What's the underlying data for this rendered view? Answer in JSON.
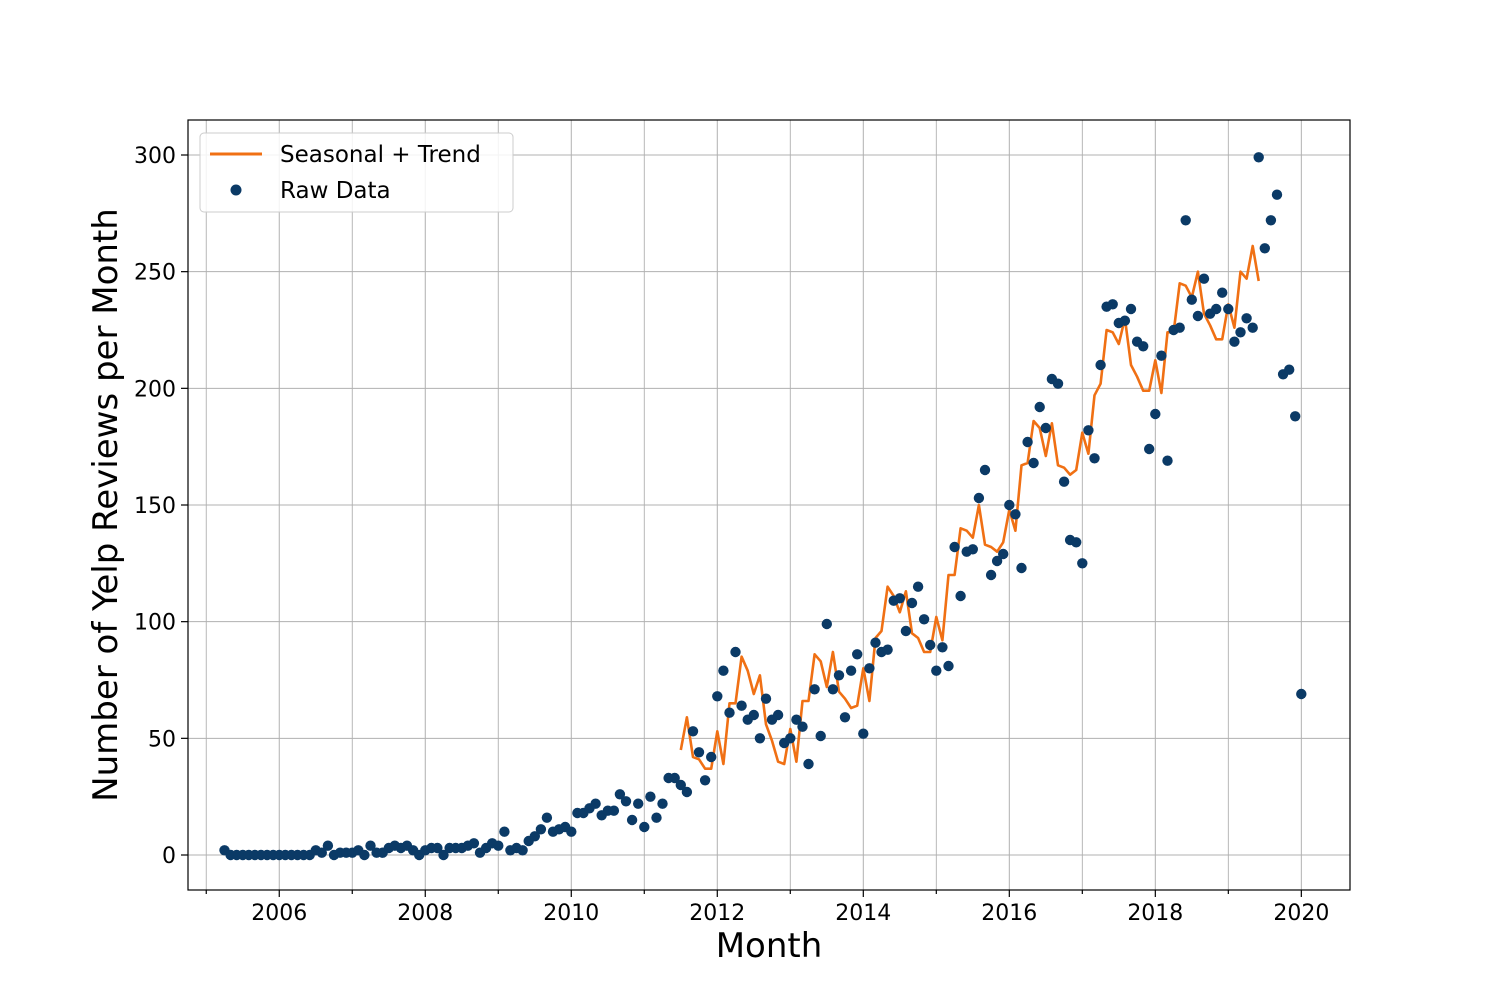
{
  "chart_data": {
    "type": "line+scatter",
    "xlabel": "Month",
    "ylabel": "Number of Yelp Reviews per Month",
    "xlim": [
      "2004-10",
      "2020-09"
    ],
    "ylim": [
      -15,
      315
    ],
    "x_major_ticks": [
      "2006",
      "2008",
      "2010",
      "2012",
      "2014",
      "2016",
      "2018",
      "2020"
    ],
    "x_minor_ticks": [
      "2005",
      "2007",
      "2009",
      "2011",
      "2013",
      "2015",
      "2017",
      "2019"
    ],
    "y_ticks": [
      0,
      50,
      100,
      150,
      200,
      250,
      300
    ],
    "grid": true,
    "legend_position": "top-left",
    "legend": [
      {
        "label": "Seasonal + Trend",
        "marker": "line",
        "color": "#f07014"
      },
      {
        "label": "Raw Data",
        "marker": "dot",
        "color": "#0b3a66"
      }
    ],
    "colors": {
      "line": "#f07014",
      "points": "#0b3a66",
      "grid": "#b0b0b0"
    },
    "series": [
      {
        "name": "Raw Data",
        "kind": "scatter",
        "points": [
          [
            "2005-04",
            2
          ],
          [
            "2005-05",
            0
          ],
          [
            "2005-06",
            0
          ],
          [
            "2005-07",
            0
          ],
          [
            "2005-08",
            0
          ],
          [
            "2005-09",
            0
          ],
          [
            "2005-10",
            0
          ],
          [
            "2005-11",
            0
          ],
          [
            "2005-12",
            0
          ],
          [
            "2006-01",
            0
          ],
          [
            "2006-02",
            0
          ],
          [
            "2006-03",
            0
          ],
          [
            "2006-04",
            0
          ],
          [
            "2006-05",
            0
          ],
          [
            "2006-06",
            0
          ],
          [
            "2006-07",
            2
          ],
          [
            "2006-08",
            1
          ],
          [
            "2006-09",
            4
          ],
          [
            "2006-10",
            0
          ],
          [
            "2006-11",
            1
          ],
          [
            "2006-12",
            1
          ],
          [
            "2007-01",
            1
          ],
          [
            "2007-02",
            2
          ],
          [
            "2007-03",
            0
          ],
          [
            "2007-04",
            4
          ],
          [
            "2007-05",
            1
          ],
          [
            "2007-06",
            1
          ],
          [
            "2007-07",
            3
          ],
          [
            "2007-08",
            4
          ],
          [
            "2007-09",
            3
          ],
          [
            "2007-10",
            4
          ],
          [
            "2007-11",
            2
          ],
          [
            "2007-12",
            0
          ],
          [
            "2008-01",
            2
          ],
          [
            "2008-02",
            3
          ],
          [
            "2008-03",
            3
          ],
          [
            "2008-04",
            0
          ],
          [
            "2008-05",
            3
          ],
          [
            "2008-06",
            3
          ],
          [
            "2008-07",
            3
          ],
          [
            "2008-08",
            4
          ],
          [
            "2008-09",
            5
          ],
          [
            "2008-10",
            1
          ],
          [
            "2008-11",
            3
          ],
          [
            "2008-12",
            5
          ],
          [
            "2009-01",
            4
          ],
          [
            "2009-02",
            10
          ],
          [
            "2009-03",
            2
          ],
          [
            "2009-04",
            3
          ],
          [
            "2009-05",
            2
          ],
          [
            "2009-06",
            6
          ],
          [
            "2009-07",
            8
          ],
          [
            "2009-08",
            11
          ],
          [
            "2009-09",
            16
          ],
          [
            "2009-10",
            10
          ],
          [
            "2009-11",
            11
          ],
          [
            "2009-12",
            12
          ],
          [
            "2010-01",
            10
          ],
          [
            "2010-02",
            18
          ],
          [
            "2010-03",
            18
          ],
          [
            "2010-04",
            20
          ],
          [
            "2010-05",
            22
          ],
          [
            "2010-06",
            17
          ],
          [
            "2010-07",
            19
          ],
          [
            "2010-08",
            19
          ],
          [
            "2010-09",
            26
          ],
          [
            "2010-10",
            23
          ],
          [
            "2010-11",
            15
          ],
          [
            "2010-12",
            22
          ],
          [
            "2011-01",
            12
          ],
          [
            "2011-02",
            25
          ],
          [
            "2011-03",
            16
          ],
          [
            "2011-04",
            22
          ],
          [
            "2011-05",
            33
          ],
          [
            "2011-06",
            33
          ],
          [
            "2011-07",
            30
          ],
          [
            "2011-08",
            27
          ],
          [
            "2011-09",
            53
          ],
          [
            "2011-10",
            44
          ],
          [
            "2011-11",
            32
          ],
          [
            "2011-12",
            42
          ],
          [
            "2012-01",
            68
          ],
          [
            "2012-02",
            79
          ],
          [
            "2012-03",
            61
          ],
          [
            "2012-04",
            87
          ],
          [
            "2012-05",
            64
          ],
          [
            "2012-06",
            58
          ],
          [
            "2012-07",
            60
          ],
          [
            "2012-08",
            50
          ],
          [
            "2012-09",
            67
          ],
          [
            "2012-10",
            58
          ],
          [
            "2012-11",
            60
          ],
          [
            "2012-12",
            48
          ],
          [
            "2013-01",
            50
          ],
          [
            "2013-02",
            58
          ],
          [
            "2013-03",
            55
          ],
          [
            "2013-04",
            39
          ],
          [
            "2013-05",
            71
          ],
          [
            "2013-06",
            51
          ],
          [
            "2013-07",
            99
          ],
          [
            "2013-08",
            71
          ],
          [
            "2013-09",
            77
          ],
          [
            "2013-10",
            59
          ],
          [
            "2013-11",
            79
          ],
          [
            "2013-12",
            86
          ],
          [
            "2014-01",
            52
          ],
          [
            "2014-02",
            80
          ],
          [
            "2014-03",
            91
          ],
          [
            "2014-04",
            87
          ],
          [
            "2014-05",
            88
          ],
          [
            "2014-06",
            109
          ],
          [
            "2014-07",
            110
          ],
          [
            "2014-08",
            96
          ],
          [
            "2014-09",
            108
          ],
          [
            "2014-10",
            115
          ],
          [
            "2014-11",
            101
          ],
          [
            "2014-12",
            90
          ],
          [
            "2015-01",
            79
          ],
          [
            "2015-02",
            89
          ],
          [
            "2015-03",
            81
          ],
          [
            "2015-04",
            132
          ],
          [
            "2015-05",
            111
          ],
          [
            "2015-06",
            130
          ],
          [
            "2015-07",
            131
          ],
          [
            "2015-08",
            153
          ],
          [
            "2015-09",
            165
          ],
          [
            "2015-10",
            120
          ],
          [
            "2015-11",
            126
          ],
          [
            "2015-12",
            129
          ],
          [
            "2016-01",
            150
          ],
          [
            "2016-02",
            146
          ],
          [
            "2016-03",
            123
          ],
          [
            "2016-04",
            177
          ],
          [
            "2016-05",
            168
          ],
          [
            "2016-06",
            192
          ],
          [
            "2016-07",
            183
          ],
          [
            "2016-08",
            204
          ],
          [
            "2016-09",
            202
          ],
          [
            "2016-10",
            160
          ],
          [
            "2016-11",
            135
          ],
          [
            "2016-12",
            134
          ],
          [
            "2017-01",
            125
          ],
          [
            "2017-02",
            182
          ],
          [
            "2017-03",
            170
          ],
          [
            "2017-04",
            210
          ],
          [
            "2017-05",
            235
          ],
          [
            "2017-06",
            236
          ],
          [
            "2017-07",
            228
          ],
          [
            "2017-08",
            229
          ],
          [
            "2017-09",
            234
          ],
          [
            "2017-10",
            220
          ],
          [
            "2017-11",
            218
          ],
          [
            "2017-12",
            174
          ],
          [
            "2018-01",
            189
          ],
          [
            "2018-02",
            214
          ],
          [
            "2018-03",
            169
          ],
          [
            "2018-04",
            225
          ],
          [
            "2018-05",
            226
          ],
          [
            "2018-06",
            272
          ],
          [
            "2018-07",
            238
          ],
          [
            "2018-08",
            231
          ],
          [
            "2018-09",
            247
          ],
          [
            "2018-10",
            232
          ],
          [
            "2018-11",
            234
          ],
          [
            "2018-12",
            241
          ],
          [
            "2019-01",
            234
          ],
          [
            "2019-02",
            220
          ],
          [
            "2019-03",
            224
          ],
          [
            "2019-04",
            230
          ],
          [
            "2019-05",
            226
          ],
          [
            "2019-06",
            299
          ],
          [
            "2019-07",
            260
          ],
          [
            "2019-08",
            272
          ],
          [
            "2019-09",
            283
          ],
          [
            "2019-10",
            206
          ],
          [
            "2019-11",
            208
          ],
          [
            "2019-12",
            188
          ],
          [
            "2020-01",
            69
          ]
        ]
      },
      {
        "name": "Seasonal + Trend",
        "kind": "line",
        "points": [
          [
            "2011-07",
            45
          ],
          [
            "2011-08",
            59
          ],
          [
            "2011-09",
            42
          ],
          [
            "2011-10",
            41
          ],
          [
            "2011-11",
            37
          ],
          [
            "2011-12",
            37
          ],
          [
            "2012-01",
            53
          ],
          [
            "2012-02",
            39
          ],
          [
            "2012-03",
            65
          ],
          [
            "2012-04",
            65
          ],
          [
            "2012-05",
            85
          ],
          [
            "2012-06",
            79
          ],
          [
            "2012-07",
            69
          ],
          [
            "2012-08",
            77
          ],
          [
            "2012-09",
            56
          ],
          [
            "2012-10",
            49
          ],
          [
            "2012-11",
            40
          ],
          [
            "2012-12",
            39
          ],
          [
            "2013-01",
            54
          ],
          [
            "2013-02",
            40
          ],
          [
            "2013-03",
            66
          ],
          [
            "2013-04",
            66
          ],
          [
            "2013-05",
            86
          ],
          [
            "2013-06",
            83
          ],
          [
            "2013-07",
            72
          ],
          [
            "2013-08",
            87
          ],
          [
            "2013-09",
            70
          ],
          [
            "2013-10",
            67
          ],
          [
            "2013-11",
            63
          ],
          [
            "2013-12",
            64
          ],
          [
            "2014-01",
            80
          ],
          [
            "2014-02",
            66
          ],
          [
            "2014-03",
            93
          ],
          [
            "2014-04",
            96
          ],
          [
            "2014-05",
            115
          ],
          [
            "2014-06",
            111
          ],
          [
            "2014-07",
            104
          ],
          [
            "2014-08",
            113
          ],
          [
            "2014-09",
            95
          ],
          [
            "2014-10",
            93
          ],
          [
            "2014-11",
            87
          ],
          [
            "2014-12",
            87
          ],
          [
            "2015-01",
            102
          ],
          [
            "2015-02",
            92
          ],
          [
            "2015-03",
            120
          ],
          [
            "2015-04",
            120
          ],
          [
            "2015-05",
            140
          ],
          [
            "2015-06",
            139
          ],
          [
            "2015-07",
            136
          ],
          [
            "2015-08",
            150
          ],
          [
            "2015-09",
            133
          ],
          [
            "2015-10",
            132
          ],
          [
            "2015-11",
            130
          ],
          [
            "2015-12",
            134
          ],
          [
            "2016-01",
            148
          ],
          [
            "2016-02",
            139
          ],
          [
            "2016-03",
            167
          ],
          [
            "2016-04",
            168
          ],
          [
            "2016-05",
            186
          ],
          [
            "2016-06",
            183
          ],
          [
            "2016-07",
            171
          ],
          [
            "2016-08",
            185
          ],
          [
            "2016-09",
            167
          ],
          [
            "2016-10",
            166
          ],
          [
            "2016-11",
            163
          ],
          [
            "2016-12",
            165
          ],
          [
            "2017-01",
            181
          ],
          [
            "2017-02",
            172
          ],
          [
            "2017-03",
            197
          ],
          [
            "2017-04",
            202
          ],
          [
            "2017-05",
            225
          ],
          [
            "2017-06",
            224
          ],
          [
            "2017-07",
            219
          ],
          [
            "2017-08",
            230
          ],
          [
            "2017-09",
            210
          ],
          [
            "2017-10",
            205
          ],
          [
            "2017-11",
            199
          ],
          [
            "2017-12",
            199
          ],
          [
            "2018-01",
            212
          ],
          [
            "2018-02",
            198
          ],
          [
            "2018-03",
            224
          ],
          [
            "2018-04",
            224
          ],
          [
            "2018-05",
            245
          ],
          [
            "2018-06",
            244
          ],
          [
            "2018-07",
            239
          ],
          [
            "2018-08",
            250
          ],
          [
            "2018-09",
            232
          ],
          [
            "2018-10",
            227
          ],
          [
            "2018-11",
            221
          ],
          [
            "2018-12",
            221
          ],
          [
            "2019-01",
            236
          ],
          [
            "2019-02",
            226
          ],
          [
            "2019-03",
            250
          ],
          [
            "2019-04",
            247
          ],
          [
            "2019-05",
            261
          ],
          [
            "2019-06",
            246
          ]
        ]
      }
    ]
  }
}
